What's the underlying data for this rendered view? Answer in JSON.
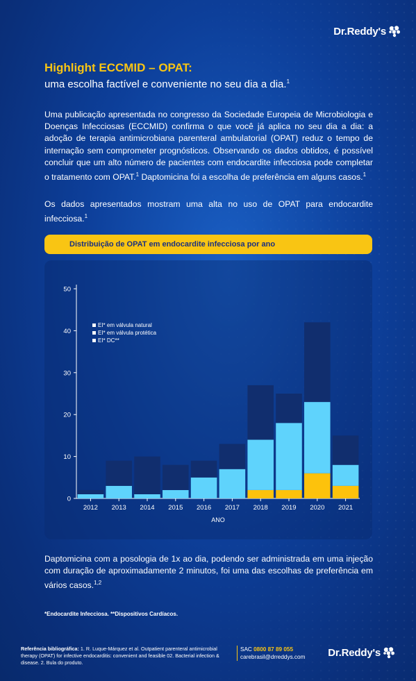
{
  "brand": {
    "name": "Dr.Reddy's"
  },
  "header": {
    "title": "Highlight ECCMID – OPAT:",
    "subtitle": "uma escolha factível e conveniente no seu dia a dia.",
    "subtitle_ref": "1"
  },
  "intro": {
    "part1": "Uma publicação apresentada no congresso da Sociedade Europeia de Microbiologia e Doenças Infecciosas (ECCMID) confirma o que você já aplica no seu dia a dia: a adoção de terapia antimicrobiana parenteral ambulatorial (OPAT) reduz o tempo de internação sem comprometer prognósticos. Observando os dados obtidos, é possível concluir que um alto número de pacientes com endocardite infecciosa pode completar o tratamento com OPAT.",
    "ref1": "1",
    "part2": " Daptomicina foi a escolha de preferência em alguns casos.",
    "ref2": "1"
  },
  "intro2": {
    "text": "Os dados apresentados mostram uma alta no uso de OPAT para endocardite infecciosa.",
    "ref": "1"
  },
  "chart_banner": "Distribuição de OPAT em endocardite infecciosa por ano",
  "chart_data": {
    "type": "bar",
    "stacked": true,
    "categories": [
      "2012",
      "2013",
      "2014",
      "2015",
      "2016",
      "2017",
      "2018",
      "2019",
      "2020",
      "2021"
    ],
    "series": [
      {
        "name": "EI* DC**",
        "color": "#fdc20c",
        "values": [
          0,
          0,
          0,
          0,
          0,
          0,
          2,
          2,
          6,
          3
        ]
      },
      {
        "name": "EI* em válvula protética",
        "color": "#5fd3fc",
        "values": [
          1,
          3,
          1,
          2,
          5,
          7,
          12,
          16,
          17,
          5
        ]
      },
      {
        "name": "EI* em válvula natural",
        "color": "#112e6e",
        "values": [
          1,
          6,
          9,
          6,
          4,
          6,
          13,
          7,
          19,
          7
        ]
      }
    ],
    "legend_order": [
      "EI* em válvula natural",
      "EI* em válvula protética",
      "EI* DC**"
    ],
    "yticks": [
      "0",
      "10",
      "20",
      "30",
      "40",
      "50"
    ],
    "ylim": [
      0,
      50
    ],
    "xlabel": "ANO",
    "ylabel": "",
    "grid": false,
    "legend_position": "top-left"
  },
  "closing": {
    "text": "Daptomicina com a posologia de 1x ao dia, podendo ser administrada em uma injeção com duração de aproximadamente 2 minutos, foi uma das escolhas de preferência em vários casos.",
    "ref": "1,2"
  },
  "footnote": "*Endocardite Infecciosa. **Dispositivos Cardíacos.",
  "reference": {
    "label": "Referência bibliográfica:",
    "text": " 1. R. Luque-Márquez et al. Outpatient parenteral antimicrobial therapy (OPAT) for infective endocarditis: convenient and feasible 02. Bacterial infection & disease. 2. Bula do produto."
  },
  "contact": {
    "sac_label": "SAC ",
    "phone": "0800 87 89 055",
    "email": "carebrasil@drreddys.com"
  },
  "colors": {
    "accent": "#f9c513",
    "background": "#0d3f9a"
  }
}
